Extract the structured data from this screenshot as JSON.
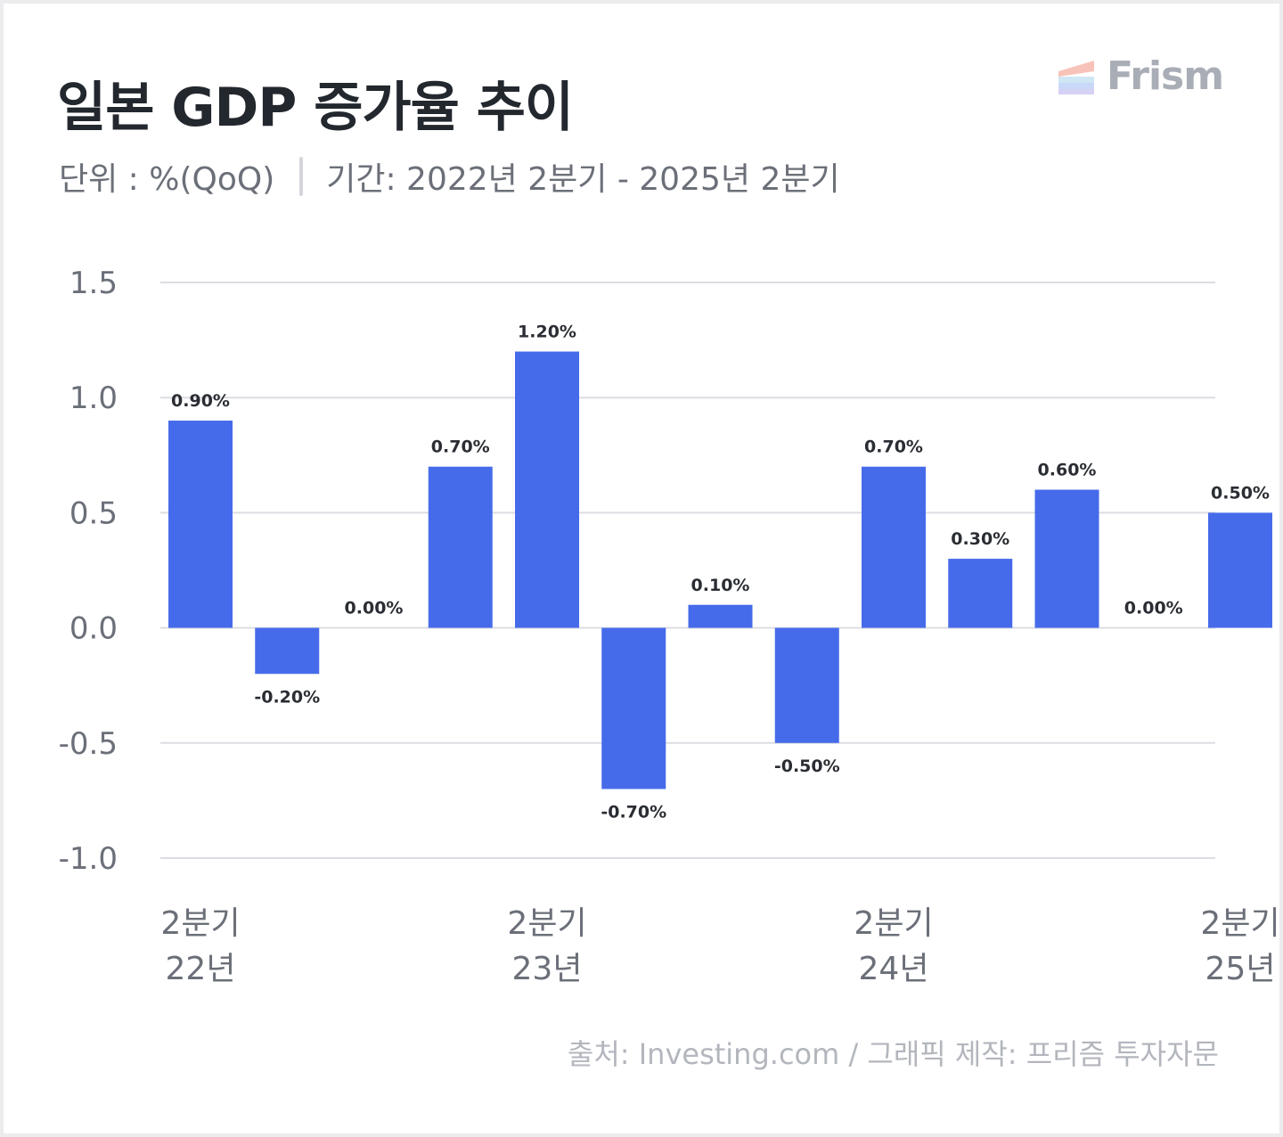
{
  "header": {
    "title": "일본 GDP 증가율 추이",
    "unit": "단위 : %(QoQ)",
    "period": "기간: 2022년 2분기 - 2025년 2분기"
  },
  "brand": {
    "logo_text": "Frism",
    "logo_icon": "frism-stripes-icon"
  },
  "footer": {
    "source": "출처: Investing.com / 그래픽 제작: 프리즘 투자자문"
  },
  "colors": {
    "bar": "#466bea",
    "grid": "#dcdde2",
    "text": "#23272e"
  },
  "chart_data": {
    "type": "bar",
    "title": "일본 GDP 증가율 추이",
    "ylim": [
      -1.0,
      1.5
    ],
    "yticks": [
      "1.5",
      "1.0",
      "0.5",
      "0.0",
      "-0.5",
      "-1.0"
    ],
    "ytick_values": [
      1.5,
      1.0,
      0.5,
      0.0,
      -0.5,
      -1.0
    ],
    "grid": true,
    "values": [
      0.9,
      -0.2,
      0.0,
      0.7,
      1.2,
      -0.7,
      0.1,
      -0.5,
      0.7,
      0.3,
      0.6,
      0.0,
      0.5
    ],
    "labels": [
      "0.90%",
      "-0.20%",
      "0.00%",
      "0.70%",
      "1.20%",
      "-0.70%",
      "0.10%",
      "-0.50%",
      "0.70%",
      "0.30%",
      "0.60%",
      "0.00%",
      "0.50%"
    ],
    "x_tick_labels": [
      {
        "index": 0,
        "quarter": "2분기",
        "year": "22년"
      },
      {
        "index": 4,
        "quarter": "2분기",
        "year": "23년"
      },
      {
        "index": 8,
        "quarter": "2분기",
        "year": "24년"
      },
      {
        "index": 12,
        "quarter": "2분기",
        "year": "25년"
      }
    ]
  }
}
